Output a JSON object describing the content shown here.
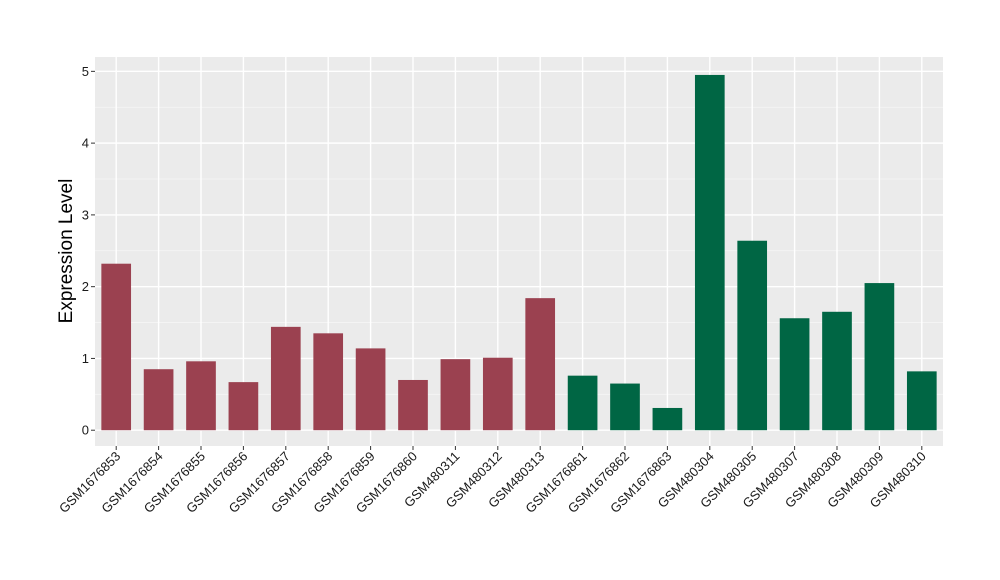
{
  "chart_data": {
    "type": "bar",
    "title": "",
    "xlabel": "",
    "ylabel": "Expression Level",
    "ylim": [
      -0.22,
      5.2
    ],
    "yticks": [
      0,
      1,
      2,
      3,
      4,
      5
    ],
    "grid": true,
    "legend": "none",
    "categories": [
      "GSM1676853",
      "GSM1676854",
      "GSM1676855",
      "GSM1676856",
      "GSM1676857",
      "GSM1676858",
      "GSM1676859",
      "GSM1676860",
      "GSM480311",
      "GSM480312",
      "GSM480313",
      "GSM1676861",
      "GSM1676862",
      "GSM1676863",
      "GSM480304",
      "GSM480305",
      "GSM480307",
      "GSM480308",
      "GSM480309",
      "GSM480310"
    ],
    "values": [
      2.32,
      0.85,
      0.96,
      0.67,
      1.44,
      1.35,
      1.14,
      0.7,
      0.99,
      1.01,
      1.84,
      0.76,
      0.65,
      0.31,
      4.95,
      2.64,
      1.56,
      1.65,
      2.05,
      0.82
    ],
    "bar_colors": [
      "#9b4150",
      "#9b4150",
      "#9b4150",
      "#9b4150",
      "#9b4150",
      "#9b4150",
      "#9b4150",
      "#9b4150",
      "#9b4150",
      "#9b4150",
      "#9b4150",
      "#006644",
      "#006644",
      "#006644",
      "#006644",
      "#006644",
      "#006644",
      "#006644",
      "#006644",
      "#006644"
    ]
  }
}
